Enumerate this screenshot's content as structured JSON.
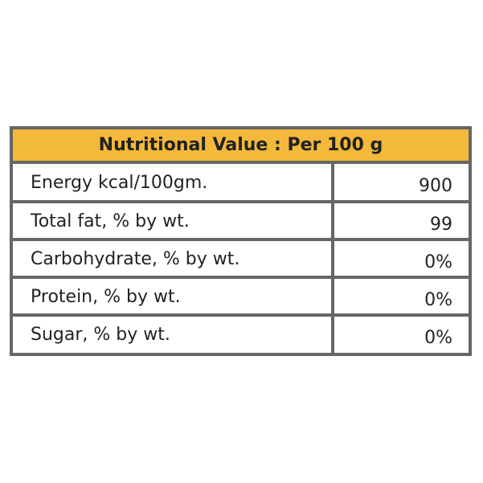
{
  "table": {
    "title": "Nutritional Value : Per 100 g",
    "rows": [
      [
        "Energy kcal/100gm.",
        "900"
      ],
      [
        "Total fat, % by wt.",
        "99"
      ],
      [
        "Carbohydrate, % by wt.",
        "0%"
      ],
      [
        "Protein, % by wt.",
        "0%"
      ],
      [
        "Sugar, % by wt.",
        "0%"
      ]
    ]
  }
}
